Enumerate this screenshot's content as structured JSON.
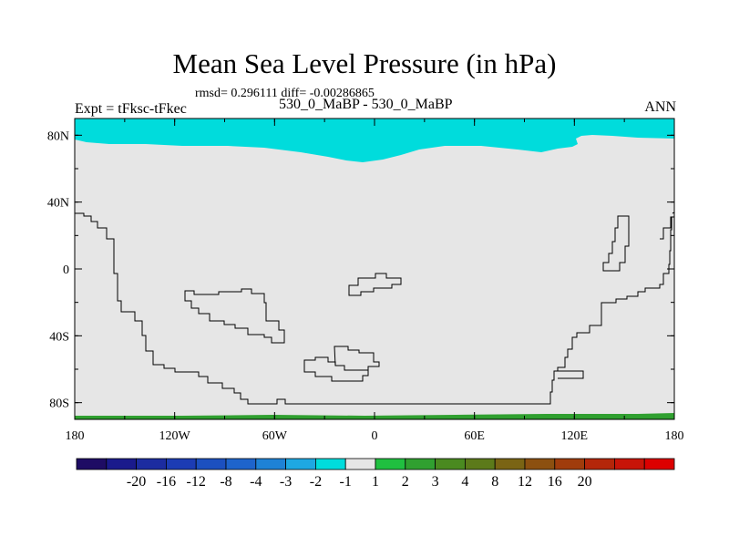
{
  "header": {
    "title": "Mean Sea Level Pressure (in hPa)",
    "stats": "rmsd= 0.296111 diff= -0.00286865",
    "left_label": "Expt = tFksc-tFkec",
    "center_label": "530_0_MaBP - 530_0_MaBP",
    "right_label": "ANN"
  },
  "chart_data": {
    "type": "heatmap",
    "title": "Mean Sea Level Pressure (in hPa)",
    "subtitle": "rmsd= 0.296111 diff= -0.00286865",
    "xlabel": "",
    "ylabel": "",
    "projection": "cylindrical-equidistant",
    "x_ticks": [
      "180",
      "120W",
      "60W",
      "0",
      "60E",
      "120E",
      "180"
    ],
    "y_ticks": [
      "80N",
      "40N",
      "0",
      "40S",
      "80S"
    ],
    "xlim": [
      -180,
      180
    ],
    "ylim": [
      -90,
      90
    ],
    "background_level_color": "#e6e6e6",
    "regions": [
      {
        "label": "-2 to -1",
        "color": "#00dcdc",
        "area": "arctic band north of ~67N"
      },
      {
        "label": "1 to 2",
        "color": "#30a030",
        "area": "thin band near 90S"
      }
    ],
    "colorbar": {
      "colors": [
        "#1e0c64",
        "#1a1a8c",
        "#1c2ca0",
        "#1c3cb4",
        "#1c50c0",
        "#1e64cc",
        "#1e82d6",
        "#1ea8e2",
        "#00dcdc",
        "#e6e6e6",
        "#20c040",
        "#30a030",
        "#4a8a20",
        "#5c7a1a",
        "#7a6414",
        "#8c5010",
        "#a03c0c",
        "#b4260a",
        "#c81408",
        "#dc0000"
      ],
      "labels": [
        "-20",
        "-16",
        "-12",
        "-8",
        "-4",
        "-3",
        "-2",
        "-1",
        "1",
        "2",
        "3",
        "4",
        "8",
        "12",
        "16",
        "20"
      ]
    }
  }
}
